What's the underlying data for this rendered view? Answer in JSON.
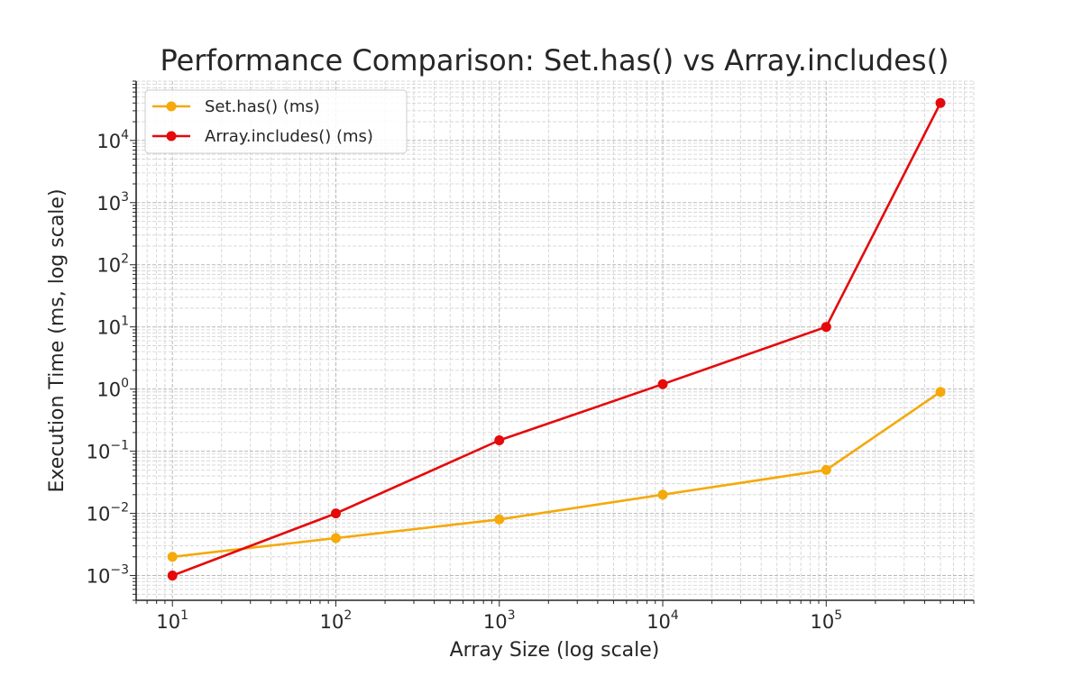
{
  "chart_data": {
    "type": "line",
    "title": "Performance Comparison: Set.has() vs Array.includes()",
    "xlabel": "Array Size (log scale)",
    "ylabel": "Execution Time (ms, log scale)",
    "xscale": "log",
    "yscale": "log",
    "xlim": [
      6,
      800000
    ],
    "ylim": [
      0.0004,
      90000
    ],
    "grid": "major and minor, dashed",
    "legend_position": "top-left",
    "x_ticks": [
      {
        "base": "10",
        "exp": "1",
        "value": 10
      },
      {
        "base": "10",
        "exp": "2",
        "value": 100
      },
      {
        "base": "10",
        "exp": "3",
        "value": 1000
      },
      {
        "base": "10",
        "exp": "4",
        "value": 10000
      },
      {
        "base": "10",
        "exp": "5",
        "value": 100000
      }
    ],
    "y_ticks": [
      {
        "base": "10",
        "exp": "−3",
        "value": 0.001
      },
      {
        "base": "10",
        "exp": "−2",
        "value": 0.01
      },
      {
        "base": "10",
        "exp": "−1",
        "value": 0.1
      },
      {
        "base": "10",
        "exp": "0",
        "value": 1
      },
      {
        "base": "10",
        "exp": "1",
        "value": 10
      },
      {
        "base": "10",
        "exp": "2",
        "value": 100
      },
      {
        "base": "10",
        "exp": "3",
        "value": 1000
      },
      {
        "base": "10",
        "exp": "4",
        "value": 10000
      }
    ],
    "x": [
      10,
      100,
      1000,
      10000,
      100000,
      500000
    ],
    "series": [
      {
        "name": "Set.has() (ms)",
        "color": "#f5a90a",
        "values": [
          0.002,
          0.004,
          0.008,
          0.02,
          0.05,
          0.9
        ]
      },
      {
        "name": "Array.includes() (ms)",
        "color": "#e5090b",
        "values": [
          0.001,
          0.01,
          0.15,
          1.2,
          10,
          40000
        ]
      }
    ]
  }
}
